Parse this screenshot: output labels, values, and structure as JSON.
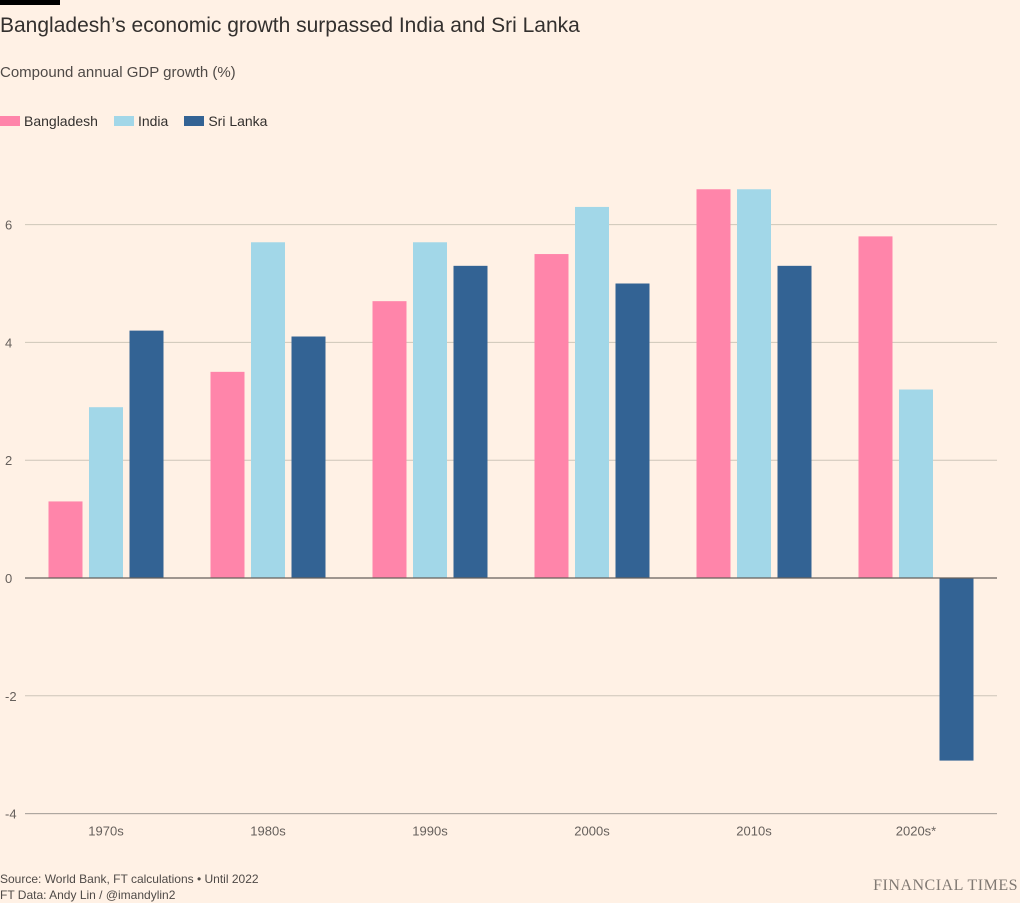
{
  "header": {
    "title": "Bangladesh’s economic growth surpassed India and Sri Lanka",
    "subtitle": "Compound annual GDP growth (%)"
  },
  "legend": {
    "items": [
      {
        "label": "Bangladesh",
        "color": "#FF85AA"
      },
      {
        "label": "India",
        "color": "#A2D7E8"
      },
      {
        "label": "Sri Lanka",
        "color": "#336394"
      }
    ]
  },
  "chart_data": {
    "type": "bar",
    "categories": [
      "1970s",
      "1980s",
      "1990s",
      "2000s",
      "2010s",
      "2020s*"
    ],
    "series": [
      {
        "name": "Bangladesh",
        "color": "#FF85AA",
        "values": [
          1.3,
          3.5,
          4.7,
          5.5,
          6.6,
          5.8
        ]
      },
      {
        "name": "India",
        "color": "#A2D7E8",
        "values": [
          2.9,
          5.7,
          5.7,
          6.3,
          6.6,
          3.2
        ]
      },
      {
        "name": "Sri Lanka",
        "color": "#336394",
        "values": [
          4.2,
          4.1,
          5.3,
          5.0,
          5.3,
          -3.1
        ]
      }
    ],
    "ylim": [
      -4,
      7
    ],
    "yticks": [
      -4,
      -2,
      0,
      2,
      4,
      6
    ],
    "ytick_labels": [
      "-4",
      "-2",
      "0",
      "2",
      "4",
      "6"
    ],
    "grid": true,
    "legend_position": "top-left"
  },
  "footer": {
    "source": "Source: World Bank, FT calculations • Until 2022",
    "credit": "FT Data: Andy Lin / @imandylin2",
    "brand": "FINANCIAL TIMES"
  }
}
